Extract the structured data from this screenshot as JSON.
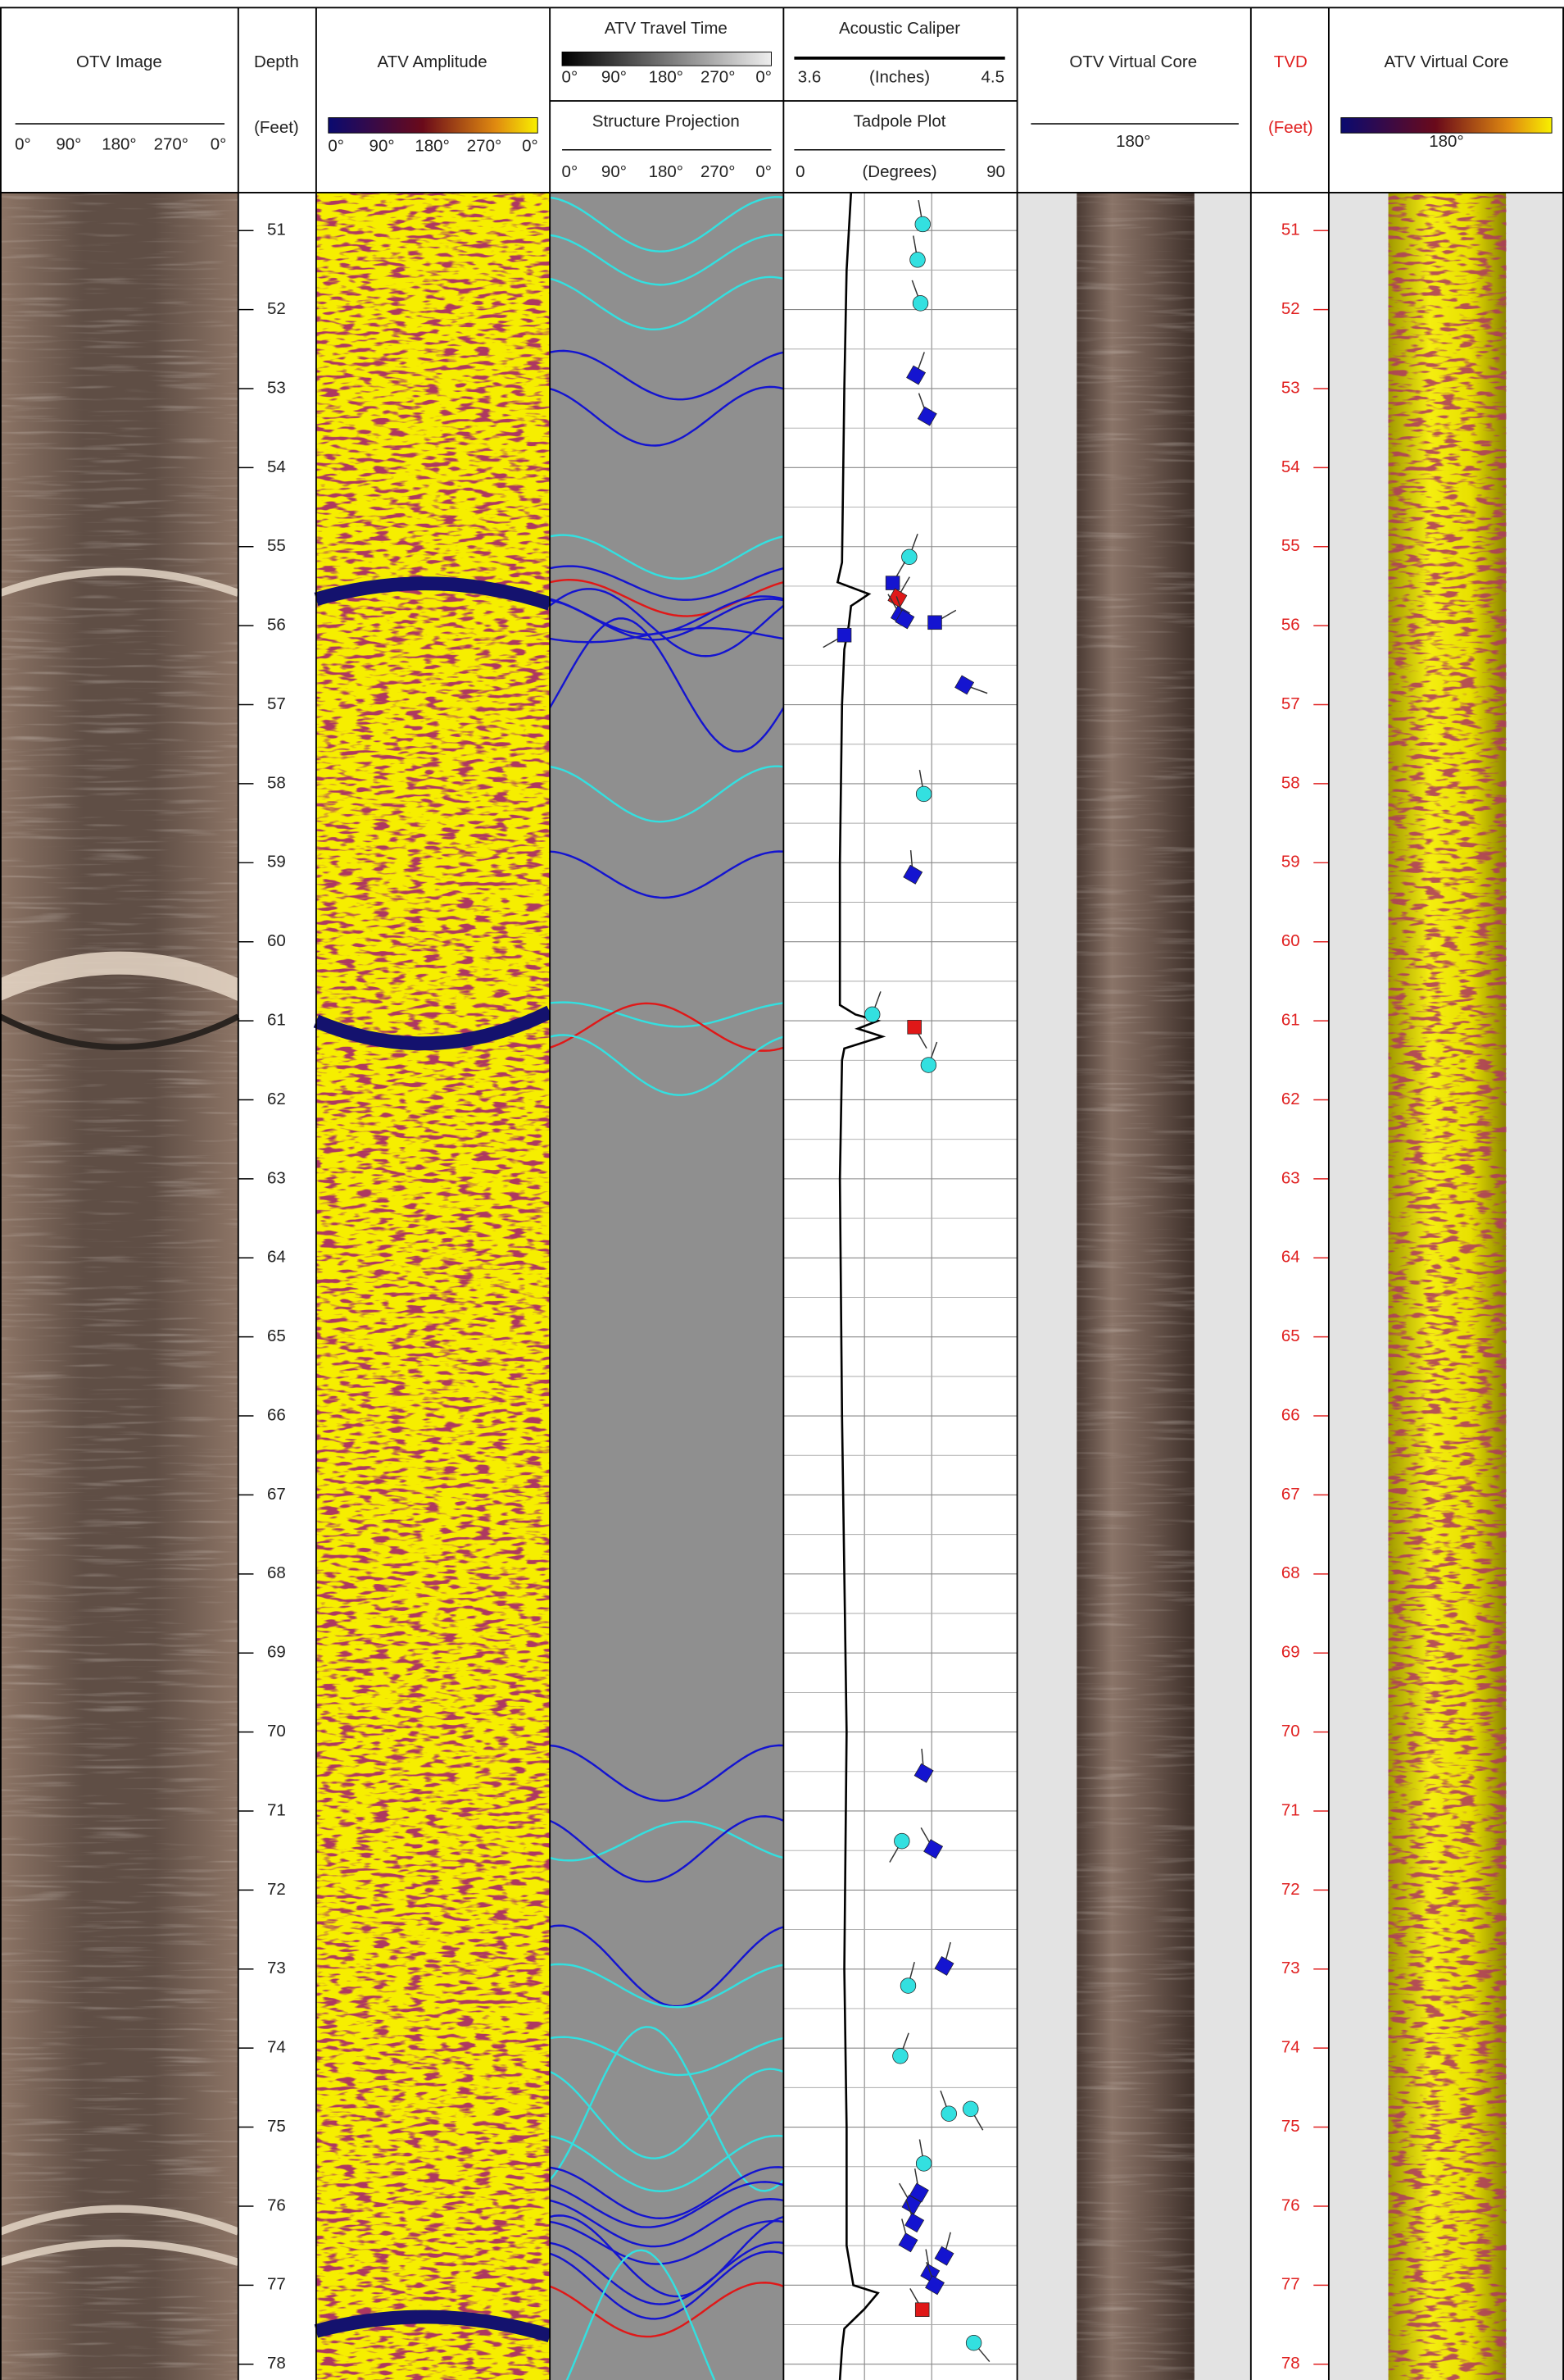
{
  "chart_data": {
    "type": "log",
    "tracks": {
      "otv_image": "OTV Image",
      "depth": "Depth",
      "depth_unit": "(Feet)",
      "atv_amplitude": "ATV Amplitude",
      "atv_travel_time": "ATV Travel Time",
      "structure_projection": "Structure Projection",
      "acoustic_caliper": "Acoustic Caliper",
      "caliper_unit": "(Inches)",
      "tadpole_plot": "Tadpole Plot",
      "tadpole_unit": "(Degrees)",
      "otv_virtual_core": "OTV Virtual Core",
      "tvd": "TVD",
      "tvd_unit": "(Feet)",
      "atv_virtual_core": "ATV Virtual Core",
      "core_azimuth": "180°"
    },
    "azimuth_labels": [
      "0°",
      "90°",
      "180°",
      "270°",
      "0°"
    ],
    "ylim": [
      50.52,
      78.2
    ],
    "yticks": [
      51,
      52,
      53,
      54,
      55,
      56,
      57,
      58,
      59,
      60,
      61,
      62,
      63,
      64,
      65,
      66,
      67,
      68,
      69,
      70,
      71,
      72,
      73,
      74,
      75,
      76,
      77,
      78
    ],
    "caliper": {
      "xlim": [
        3.6,
        4.5
      ],
      "color": "#000000",
      "depth": [
        50.52,
        51.5,
        53,
        55.2,
        55.45,
        55.6,
        55.75,
        56.0,
        56.3,
        57,
        59,
        60.8,
        60.92,
        61.0,
        61.1,
        61.2,
        61.35,
        61.5,
        63,
        66,
        70,
        73,
        75,
        76.5,
        77.0,
        77.1,
        77.3,
        77.55,
        77.8,
        78.2
      ],
      "values": [
        3.84,
        3.82,
        3.81,
        3.8,
        3.78,
        3.92,
        3.84,
        3.83,
        3.81,
        3.8,
        3.79,
        3.79,
        3.86,
        3.96,
        3.87,
        3.98,
        3.81,
        3.8,
        3.79,
        3.8,
        3.82,
        3.81,
        3.82,
        3.82,
        3.85,
        3.96,
        3.9,
        3.81,
        3.8,
        3.79
      ]
    },
    "tadpoles": {
      "xlim": [
        0,
        90
      ],
      "grid_x": [
        30,
        60
      ],
      "depth": [
        50.92,
        51.37,
        51.92,
        52.83,
        53.35,
        55.13,
        55.46,
        55.65,
        55.87,
        55.92,
        55.96,
        56.12,
        56.75,
        58.13,
        59.15,
        60.92,
        61.08,
        61.56,
        70.52,
        71.38,
        71.48,
        72.96,
        73.21,
        74.1,
        74.83,
        74.77,
        75.46,
        75.83,
        75.98,
        76.21,
        76.46,
        76.63,
        76.85,
        77.0,
        77.31,
        77.73
      ],
      "dip": [
        56,
        53.7,
        55,
        53,
        58,
        50,
        42.6,
        44.7,
        46,
        48,
        61.4,
        21,
        74.6,
        56.5,
        51.6,
        33.5,
        52.3,
        58.6,
        56.5,
        46.7,
        60.7,
        65.6,
        49.5,
        46,
        67.7,
        77.4,
        56.5,
        54.4,
        51,
        52.3,
        49.5,
        65.6,
        59.3,
        61.4,
        55.8,
        78.8
      ],
      "azimuth": [
        350,
        350,
        340,
        20,
        340,
        20,
        30,
        30,
        330,
        340,
        60,
        240,
        110,
        350,
        355,
        20,
        150,
        20,
        355,
        210,
        330,
        15,
        15,
        20,
        340,
        150,
        350,
        350,
        330,
        340,
        345,
        15,
        350,
        340,
        330,
        140
      ],
      "shape": [
        "circle",
        "circle",
        "circle",
        "diamond",
        "diamond",
        "circle",
        "square",
        "diamond",
        "diamond",
        "diamond",
        "square",
        "square",
        "diamond",
        "circle",
        "diamond",
        "circle",
        "square",
        "circle",
        "diamond",
        "circle",
        "diamond",
        "diamond",
        "circle",
        "circle",
        "circle",
        "circle",
        "circle",
        "diamond",
        "diamond",
        "diamond",
        "diamond",
        "diamond",
        "diamond",
        "diamond",
        "square",
        "circle"
      ],
      "colors": [
        "#33e0e0",
        "#33e0e0",
        "#33e0e0",
        "#1414d0",
        "#1414d0",
        "#33e0e0",
        "#1414d0",
        "#e01818",
        "#1414d0",
        "#1414d0",
        "#1414d0",
        "#1414d0",
        "#1414d0",
        "#33e0e0",
        "#1414d0",
        "#33e0e0",
        "#e01818",
        "#33e0e0",
        "#1414d0",
        "#33e0e0",
        "#1414d0",
        "#1414d0",
        "#33e0e0",
        "#33e0e0",
        "#33e0e0",
        "#33e0e0",
        "#33e0e0",
        "#1414d0",
        "#1414d0",
        "#1414d0",
        "#1414d0",
        "#1414d0",
        "#1414d0",
        "#1414d0",
        "#e01818",
        "#33e0e0"
      ]
    }
  }
}
